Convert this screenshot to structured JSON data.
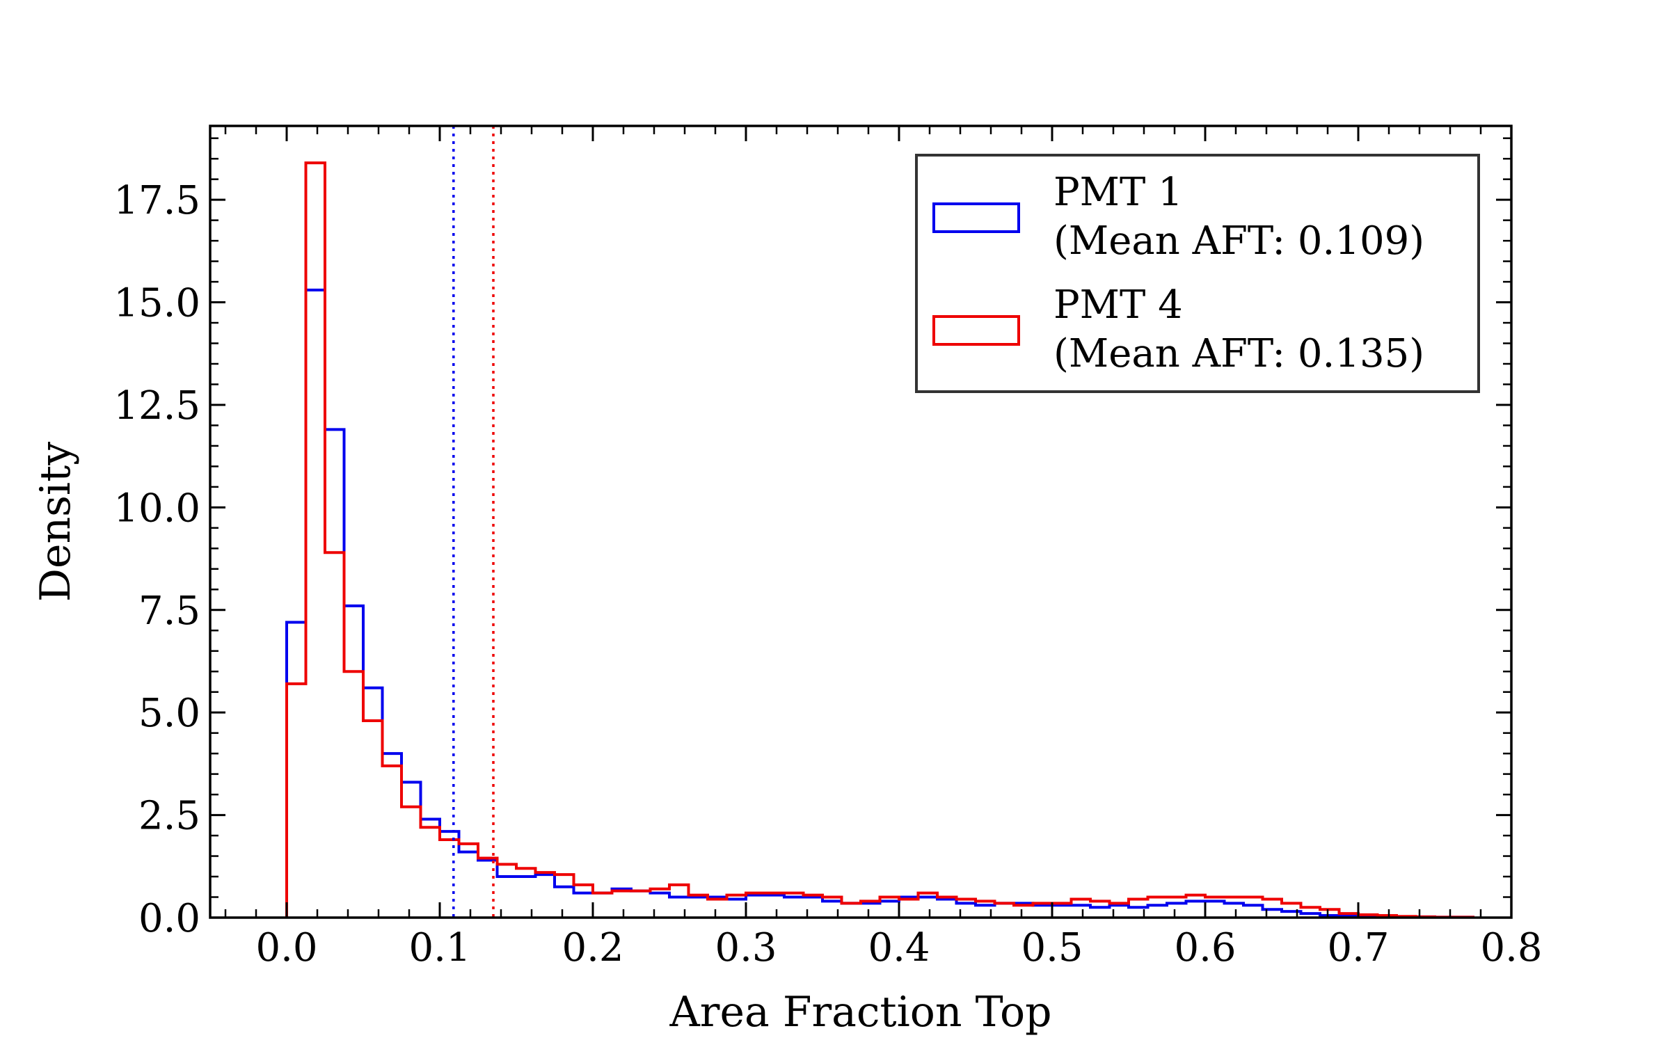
{
  "chart_data": {
    "type": "histogram",
    "title": "",
    "xlabel": "Area Fraction Top",
    "ylabel": "Density",
    "xlim": [
      -0.05,
      0.8
    ],
    "ylim": [
      0,
      19.3
    ],
    "xticks": [
      0.0,
      0.1,
      0.2,
      0.3,
      0.4,
      0.5,
      0.6,
      0.7,
      0.8
    ],
    "xtick_labels": [
      "0.0",
      "0.1",
      "0.2",
      "0.3",
      "0.4",
      "0.5",
      "0.6",
      "0.7",
      "0.8"
    ],
    "yticks": [
      0.0,
      2.5,
      5.0,
      7.5,
      10.0,
      12.5,
      15.0,
      17.5
    ],
    "ytick_labels": [
      "0.0",
      "2.5",
      "5.0",
      "7.5",
      "10.0",
      "12.5",
      "15.0",
      "17.5"
    ],
    "grid": false,
    "legend_position": "top-right",
    "histtype": "step",
    "bin_start": 0.0,
    "bin_width": 0.0125,
    "series": [
      {
        "name": "PMT 1",
        "legend_label": [
          "PMT 1",
          "(Mean AFT: 0.109)"
        ],
        "color": "#0000ee",
        "mean": 0.109,
        "values": [
          7.2,
          15.3,
          11.9,
          7.6,
          5.6,
          4.0,
          3.3,
          2.4,
          2.1,
          1.6,
          1.4,
          1.0,
          1.0,
          1.05,
          0.75,
          0.6,
          0.6,
          0.7,
          0.65,
          0.6,
          0.5,
          0.5,
          0.5,
          0.45,
          0.55,
          0.55,
          0.5,
          0.5,
          0.4,
          0.35,
          0.35,
          0.4,
          0.5,
          0.5,
          0.45,
          0.35,
          0.3,
          0.35,
          0.35,
          0.3,
          0.3,
          0.3,
          0.25,
          0.3,
          0.25,
          0.3,
          0.35,
          0.4,
          0.4,
          0.35,
          0.3,
          0.2,
          0.15,
          0.1,
          0.05,
          0.05,
          0.03,
          0.03,
          0.02,
          0.02,
          0.01,
          0.01
        ]
      },
      {
        "name": "PMT 4",
        "legend_label": [
          "PMT 4",
          "(Mean AFT: 0.135)"
        ],
        "color": "#ee0000",
        "mean": 0.135,
        "values": [
          5.7,
          18.4,
          8.9,
          6.0,
          4.8,
          3.7,
          2.7,
          2.2,
          1.9,
          1.8,
          1.45,
          1.3,
          1.2,
          1.1,
          1.05,
          0.8,
          0.6,
          0.65,
          0.65,
          0.7,
          0.8,
          0.55,
          0.45,
          0.55,
          0.6,
          0.6,
          0.6,
          0.55,
          0.5,
          0.35,
          0.4,
          0.5,
          0.45,
          0.6,
          0.5,
          0.45,
          0.4,
          0.35,
          0.3,
          0.35,
          0.35,
          0.45,
          0.4,
          0.35,
          0.45,
          0.5,
          0.5,
          0.55,
          0.5,
          0.5,
          0.5,
          0.45,
          0.35,
          0.25,
          0.2,
          0.1,
          0.07,
          0.05,
          0.03,
          0.02,
          0.01,
          0.01
        ]
      }
    ]
  }
}
